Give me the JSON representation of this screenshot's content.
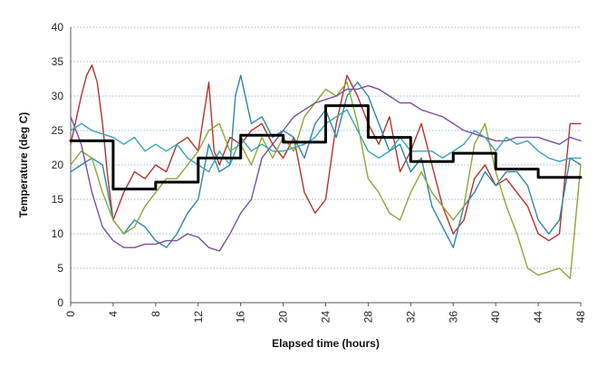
{
  "chart_data": {
    "type": "line",
    "xlabel": "Elapsed time (hours)",
    "ylabel": "Temperature (deg C)",
    "xlim": [
      0,
      48
    ],
    "ylim": [
      0,
      40
    ],
    "x_ticks": [
      0,
      4,
      8,
      12,
      16,
      20,
      24,
      28,
      32,
      36,
      40,
      44,
      48
    ],
    "y_ticks": [
      0,
      5,
      10,
      15,
      20,
      25,
      30,
      35,
      40
    ],
    "grid": "horizontal dotted",
    "legend": "none",
    "series": [
      {
        "color": "#b5332e",
        "width": 1.4,
        "points": [
          [
            0,
            23
          ],
          [
            1,
            30
          ],
          [
            1.5,
            33
          ],
          [
            2,
            34.5
          ],
          [
            2.5,
            32
          ],
          [
            3,
            26
          ],
          [
            3.5,
            18
          ],
          [
            4,
            12
          ],
          [
            5,
            16
          ],
          [
            6,
            19
          ],
          [
            7,
            18
          ],
          [
            8,
            20
          ],
          [
            9,
            19
          ],
          [
            10,
            23
          ],
          [
            11,
            24
          ],
          [
            12,
            22
          ],
          [
            12.5,
            27
          ],
          [
            13,
            32
          ],
          [
            13.5,
            22
          ],
          [
            14,
            20
          ],
          [
            15,
            24
          ],
          [
            16,
            23
          ],
          [
            17,
            25
          ],
          [
            18,
            26
          ],
          [
            19,
            23
          ],
          [
            20,
            21
          ],
          [
            21,
            24
          ],
          [
            22,
            16
          ],
          [
            23,
            13
          ],
          [
            24,
            15
          ],
          [
            25,
            26
          ],
          [
            26,
            33
          ],
          [
            27,
            30
          ],
          [
            28,
            26
          ],
          [
            29,
            23
          ],
          [
            30,
            27
          ],
          [
            31,
            19
          ],
          [
            32,
            22
          ],
          [
            33,
            26
          ],
          [
            34,
            20
          ],
          [
            35,
            14
          ],
          [
            36,
            10
          ],
          [
            37,
            12
          ],
          [
            38,
            18
          ],
          [
            39,
            20
          ],
          [
            40,
            17
          ],
          [
            41,
            18
          ],
          [
            42,
            16
          ],
          [
            43,
            14
          ],
          [
            44,
            10
          ],
          [
            45,
            9
          ],
          [
            46,
            10
          ],
          [
            47,
            26
          ],
          [
            48,
            26
          ]
        ]
      },
      {
        "color": "#2e86a8",
        "width": 1.4,
        "points": [
          [
            0,
            19
          ],
          [
            1,
            20
          ],
          [
            2,
            21
          ],
          [
            3,
            20
          ],
          [
            4,
            12
          ],
          [
            5,
            10
          ],
          [
            6,
            12
          ],
          [
            7,
            11
          ],
          [
            8,
            9
          ],
          [
            9,
            8
          ],
          [
            10,
            10
          ],
          [
            11,
            13
          ],
          [
            12,
            15
          ],
          [
            13,
            23
          ],
          [
            14,
            19
          ],
          [
            15,
            20
          ],
          [
            15.5,
            30
          ],
          [
            16,
            33
          ],
          [
            17,
            26
          ],
          [
            18,
            27
          ],
          [
            19,
            24
          ],
          [
            20,
            25
          ],
          [
            21,
            24
          ],
          [
            22,
            21
          ],
          [
            23,
            26
          ],
          [
            24,
            28
          ],
          [
            25,
            24
          ],
          [
            26,
            30
          ],
          [
            27,
            32
          ],
          [
            28,
            30
          ],
          [
            29,
            26
          ],
          [
            30,
            22
          ],
          [
            31,
            23
          ],
          [
            32,
            19
          ],
          [
            33,
            21
          ],
          [
            34,
            14
          ],
          [
            35,
            11
          ],
          [
            36,
            8
          ],
          [
            37,
            14
          ],
          [
            38,
            16
          ],
          [
            39,
            19
          ],
          [
            40,
            17
          ],
          [
            41,
            19
          ],
          [
            42,
            19
          ],
          [
            43,
            17
          ],
          [
            44,
            12
          ],
          [
            45,
            10
          ],
          [
            46,
            12
          ],
          [
            47,
            21
          ],
          [
            48,
            20
          ]
        ]
      },
      {
        "color": "#8ea736",
        "width": 1.4,
        "points": [
          [
            0,
            20
          ],
          [
            1,
            22
          ],
          [
            2,
            21
          ],
          [
            3,
            16
          ],
          [
            4,
            12
          ],
          [
            5,
            10
          ],
          [
            6,
            11
          ],
          [
            7,
            14
          ],
          [
            8,
            16
          ],
          [
            9,
            18
          ],
          [
            10,
            18
          ],
          [
            11,
            20
          ],
          [
            12,
            22
          ],
          [
            13,
            25
          ],
          [
            14,
            26
          ],
          [
            15,
            22
          ],
          [
            16,
            23
          ],
          [
            17,
            20
          ],
          [
            18,
            24
          ],
          [
            19,
            21
          ],
          [
            20,
            24
          ],
          [
            21,
            22
          ],
          [
            22,
            27
          ],
          [
            23,
            29
          ],
          [
            24,
            31
          ],
          [
            25,
            30
          ],
          [
            26,
            32
          ],
          [
            27,
            26
          ],
          [
            28,
            18
          ],
          [
            29,
            16
          ],
          [
            30,
            13
          ],
          [
            31,
            12
          ],
          [
            32,
            16
          ],
          [
            33,
            19
          ],
          [
            34,
            16
          ],
          [
            35,
            14
          ],
          [
            36,
            12
          ],
          [
            37,
            14
          ],
          [
            38,
            23
          ],
          [
            39,
            26
          ],
          [
            40,
            19
          ],
          [
            41,
            14
          ],
          [
            42,
            10
          ],
          [
            43,
            5
          ],
          [
            44,
            4
          ],
          [
            45,
            4.5
          ],
          [
            46,
            5
          ],
          [
            47,
            3.5
          ],
          [
            48,
            20
          ]
        ]
      },
      {
        "color": "#7a4fa0",
        "width": 1.4,
        "points": [
          [
            0,
            27
          ],
          [
            1,
            23
          ],
          [
            2,
            16
          ],
          [
            3,
            11
          ],
          [
            4,
            9
          ],
          [
            5,
            8
          ],
          [
            6,
            8
          ],
          [
            7,
            8.5
          ],
          [
            8,
            8.5
          ],
          [
            9,
            9
          ],
          [
            10,
            9
          ],
          [
            11,
            10
          ],
          [
            12,
            9.5
          ],
          [
            13,
            8
          ],
          [
            14,
            7.5
          ],
          [
            15,
            10
          ],
          [
            16,
            13
          ],
          [
            17,
            15
          ],
          [
            18,
            21
          ],
          [
            19,
            23
          ],
          [
            20,
            25
          ],
          [
            21,
            27
          ],
          [
            22,
            28
          ],
          [
            23,
            29
          ],
          [
            24,
            29.5
          ],
          [
            25,
            30
          ],
          [
            26,
            31
          ],
          [
            27,
            31
          ],
          [
            28,
            31.5
          ],
          [
            29,
            31
          ],
          [
            30,
            30
          ],
          [
            31,
            29
          ],
          [
            32,
            29
          ],
          [
            33,
            28
          ],
          [
            34,
            27.5
          ],
          [
            35,
            27
          ],
          [
            36,
            26
          ],
          [
            37,
            25
          ],
          [
            38,
            24.5
          ],
          [
            39,
            24
          ],
          [
            40,
            23.5
          ],
          [
            41,
            23.5
          ],
          [
            42,
            24
          ],
          [
            43,
            24
          ],
          [
            44,
            24
          ],
          [
            45,
            23.5
          ],
          [
            46,
            23
          ],
          [
            47,
            24
          ],
          [
            48,
            23.5
          ]
        ]
      },
      {
        "color": "#3aa3b4",
        "width": 1.4,
        "points": [
          [
            0,
            25
          ],
          [
            1,
            26
          ],
          [
            2,
            25
          ],
          [
            3,
            24.5
          ],
          [
            4,
            24
          ],
          [
            5,
            23
          ],
          [
            6,
            24
          ],
          [
            7,
            22
          ],
          [
            8,
            23
          ],
          [
            9,
            22
          ],
          [
            10,
            23
          ],
          [
            11,
            21
          ],
          [
            12,
            20
          ],
          [
            13,
            19
          ],
          [
            14,
            22
          ],
          [
            15,
            20
          ],
          [
            16,
            24
          ],
          [
            17,
            22
          ],
          [
            18,
            23
          ],
          [
            19,
            22
          ],
          [
            20,
            22
          ],
          [
            21,
            22.5
          ],
          [
            22,
            23
          ],
          [
            23,
            24
          ],
          [
            24,
            26
          ],
          [
            25,
            27
          ],
          [
            26,
            28
          ],
          [
            27,
            25
          ],
          [
            28,
            22
          ],
          [
            29,
            21
          ],
          [
            30,
            22
          ],
          [
            31,
            24
          ],
          [
            32,
            22
          ],
          [
            33,
            22
          ],
          [
            34,
            22
          ],
          [
            35,
            21
          ],
          [
            36,
            22
          ],
          [
            37,
            23
          ],
          [
            38,
            25
          ],
          [
            39,
            24
          ],
          [
            40,
            22
          ],
          [
            41,
            24
          ],
          [
            42,
            23
          ],
          [
            43,
            23.5
          ],
          [
            44,
            22
          ],
          [
            45,
            21
          ],
          [
            46,
            20.5
          ],
          [
            47,
            21
          ],
          [
            48,
            21
          ]
        ]
      },
      {
        "color": "#000000",
        "width": 3,
        "points": [
          [
            0,
            23.5
          ],
          [
            4,
            23.5
          ],
          [
            4,
            16.5
          ],
          [
            8,
            16.5
          ],
          [
            8,
            17.5
          ],
          [
            12,
            17.5
          ],
          [
            12,
            21
          ],
          [
            16,
            21
          ],
          [
            16,
            24.3
          ],
          [
            20,
            24.3
          ],
          [
            20,
            23.3
          ],
          [
            24,
            23.3
          ],
          [
            24,
            28.6
          ],
          [
            28,
            28.6
          ],
          [
            28,
            24
          ],
          [
            32,
            24
          ],
          [
            32,
            20.5
          ],
          [
            36,
            20.5
          ],
          [
            36,
            21.7
          ],
          [
            40,
            21.7
          ],
          [
            40,
            19.4
          ],
          [
            44,
            19.4
          ],
          [
            44,
            18.2
          ],
          [
            48,
            18.2
          ]
        ]
      }
    ]
  }
}
